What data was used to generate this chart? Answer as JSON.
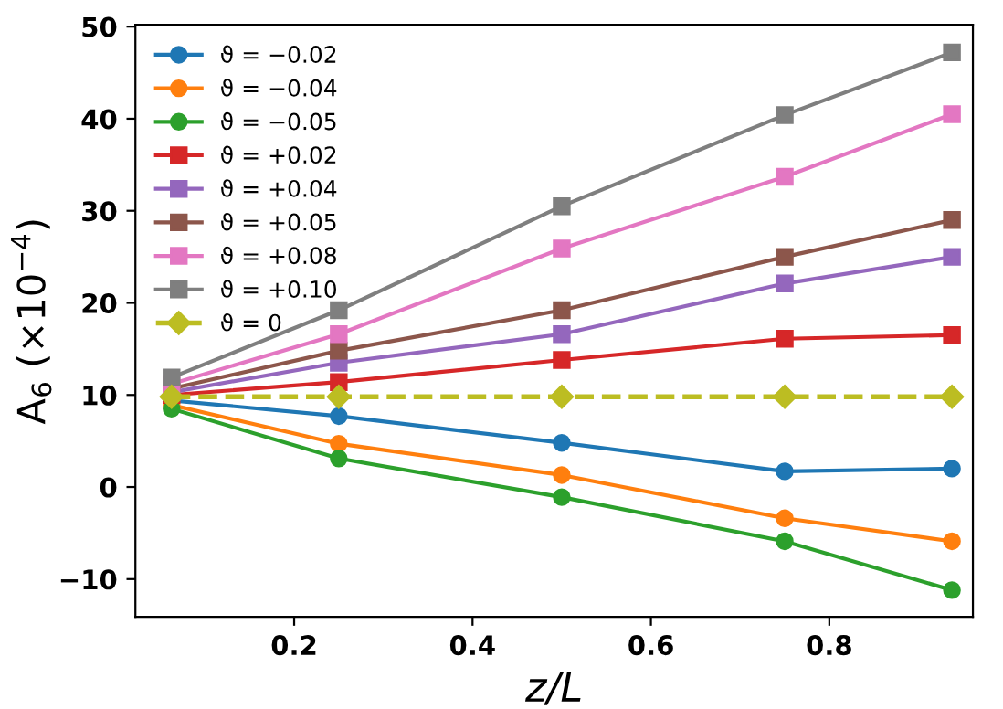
{
  "chart_data": {
    "type": "line",
    "xlabel": "z/L",
    "ylabel": "A$_{6}$ (×10$^{−4}$)",
    "x": [
      0.0625,
      0.25,
      0.5,
      0.75,
      0.9375
    ],
    "xlim": [
      0.022,
      0.961
    ],
    "xticks": [
      0.2,
      0.4,
      0.6,
      0.8
    ],
    "ylim": [
      -14.1,
      50.2
    ],
    "yticks": [
      -10,
      0,
      10,
      20,
      30,
      40,
      50
    ],
    "grid": false,
    "legend": "top left",
    "series": [
      {
        "name": "ϑ = −0.02",
        "color": "#1f77b4",
        "marker": "circle",
        "line_style": "solid",
        "values": [
          9.4,
          7.7,
          4.8,
          1.7,
          2.0
        ]
      },
      {
        "name": "ϑ = −0.04",
        "color": "#ff7f0e",
        "marker": "circle",
        "line_style": "solid",
        "values": [
          8.9,
          4.7,
          1.3,
          -3.4,
          -5.9
        ]
      },
      {
        "name": "ϑ = −0.05",
        "color": "#2ca02c",
        "marker": "circle",
        "line_style": "solid",
        "values": [
          8.5,
          3.1,
          -1.1,
          -5.9,
          -11.2
        ]
      },
      {
        "name": "ϑ = +0.02",
        "color": "#d62728",
        "marker": "square",
        "line_style": "solid",
        "values": [
          10.0,
          11.4,
          13.8,
          16.1,
          16.5
        ]
      },
      {
        "name": "ϑ = +0.04",
        "color": "#9467bd",
        "marker": "square",
        "line_style": "solid",
        "values": [
          10.3,
          13.5,
          16.6,
          22.1,
          25.0
        ]
      },
      {
        "name": "ϑ = +0.05",
        "color": "#8c564b",
        "marker": "square",
        "line_style": "solid",
        "values": [
          10.7,
          14.8,
          19.2,
          25.0,
          29.0
        ]
      },
      {
        "name": "ϑ = +0.08",
        "color": "#e377c2",
        "marker": "square",
        "line_style": "solid",
        "values": [
          11.2,
          16.6,
          25.9,
          33.7,
          40.5
        ]
      },
      {
        "name": "ϑ = +0.10",
        "color": "#7f7f7f",
        "marker": "square",
        "line_style": "solid",
        "values": [
          11.9,
          19.2,
          30.5,
          40.4,
          47.2
        ]
      },
      {
        "name": "ϑ = 0",
        "color": "#bcbd22",
        "marker": "diamond",
        "line_style": "dashed",
        "values": [
          9.8,
          9.8,
          9.8,
          9.8,
          9.8
        ]
      }
    ]
  }
}
